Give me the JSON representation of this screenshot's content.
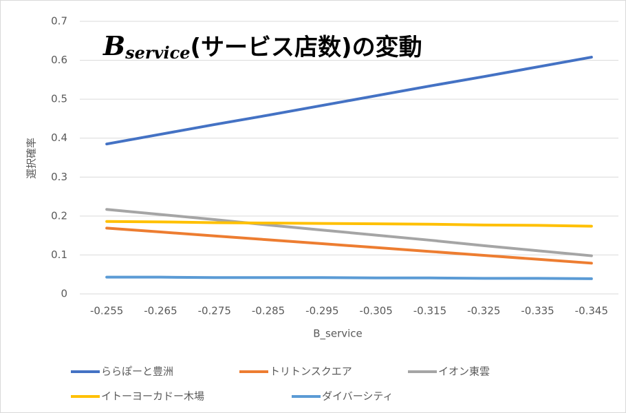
{
  "chart_data": {
    "type": "line",
    "title_parts": [
      "B",
      "service",
      "(サービス店数)の変動"
    ],
    "x_label": "B_service",
    "y_label": "選択確率",
    "categories": [
      "-0.255",
      "-0.265",
      "-0.275",
      "-0.285",
      "-0.295",
      "-0.305",
      "-0.315",
      "-0.325",
      "-0.335",
      "-0.345"
    ],
    "series": [
      {
        "name": "ららぽーと豊洲",
        "color": "#4472c4",
        "values": [
          0.385,
          0.41,
          0.435,
          0.459,
          0.484,
          0.509,
          0.534,
          0.558,
          0.583,
          0.608
        ]
      },
      {
        "name": "トリトンスクエア",
        "color": "#ed7d31",
        "values": [
          0.169,
          0.159,
          0.149,
          0.139,
          0.129,
          0.119,
          0.109,
          0.099,
          0.089,
          0.079
        ]
      },
      {
        "name": "イオン東雲",
        "color": "#a5a5a5",
        "values": [
          0.217,
          0.204,
          0.191,
          0.177,
          0.164,
          0.151,
          0.138,
          0.124,
          0.111,
          0.098
        ]
      },
      {
        "name": "イトーヨーカドー木場",
        "color": "#ffc000",
        "values": [
          0.186,
          0.185,
          0.183,
          0.182,
          0.181,
          0.18,
          0.179,
          0.177,
          0.176,
          0.174
        ]
      },
      {
        "name": "ダイバーシティ",
        "color": "#5b9bd5",
        "values": [
          0.043,
          0.043,
          0.042,
          0.042,
          0.042,
          0.041,
          0.041,
          0.04,
          0.04,
          0.039
        ]
      }
    ],
    "ylim": [
      0,
      0.7
    ],
    "yticks": [
      0,
      0.1,
      0.2,
      0.3,
      0.4,
      0.5,
      0.6,
      0.7
    ],
    "grid": true,
    "legend": "bottom"
  }
}
